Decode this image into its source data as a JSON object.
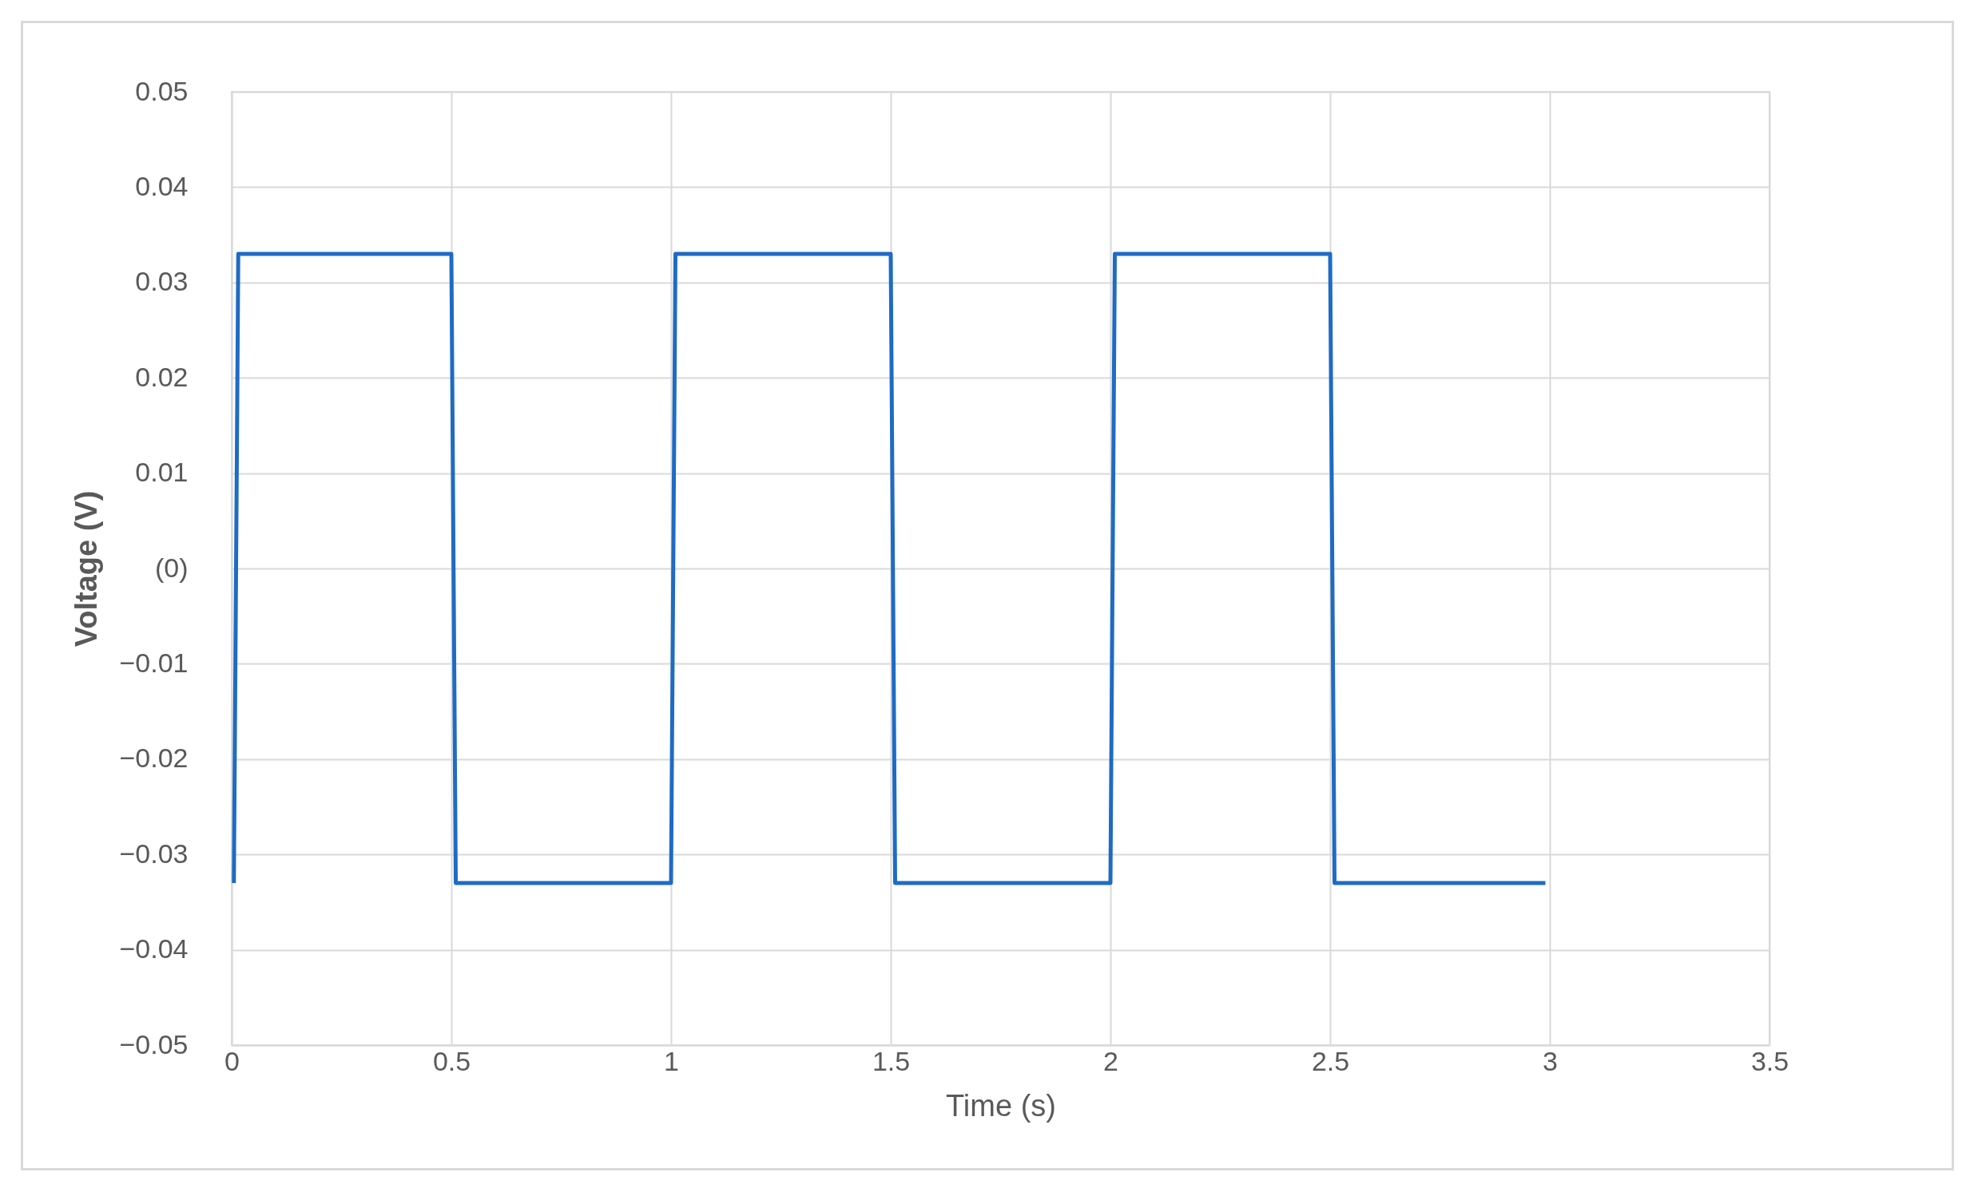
{
  "chart_data": {
    "type": "line",
    "xlabel": "Time (s)",
    "ylabel": "Voltage (V)",
    "x": [
      0.005,
      0.015,
      0.5,
      0.51,
      1.0,
      1.01,
      1.5,
      1.51,
      2.0,
      2.01,
      2.5,
      2.51,
      2.99
    ],
    "series": [
      {
        "color": "#1f6bc4",
        "values": [
          -0.033,
          0.033,
          0.033,
          -0.033,
          -0.033,
          0.033,
          0.033,
          -0.033,
          -0.033,
          0.033,
          0.033,
          -0.033,
          -0.033
        ]
      }
    ],
    "xlim": [
      0,
      3.5
    ],
    "xticks": [
      0,
      0.5,
      1,
      1.5,
      2,
      2.5,
      3,
      3.5
    ],
    "ylim": [
      -0.05,
      0.05
    ],
    "yticks": [
      {
        "value": -0.05,
        "label": "−0.05"
      },
      {
        "value": -0.04,
        "label": "−0.04"
      },
      {
        "value": -0.03,
        "label": "−0.03"
      },
      {
        "value": -0.02,
        "label": "−0.02"
      },
      {
        "value": -0.01,
        "label": "−0.01"
      },
      {
        "value": 0,
        "label": "(0)"
      },
      0.01,
      0.02,
      0.03,
      0.04,
      0.05
    ],
    "grid": true,
    "marker": "none",
    "line_style": "solid"
  }
}
